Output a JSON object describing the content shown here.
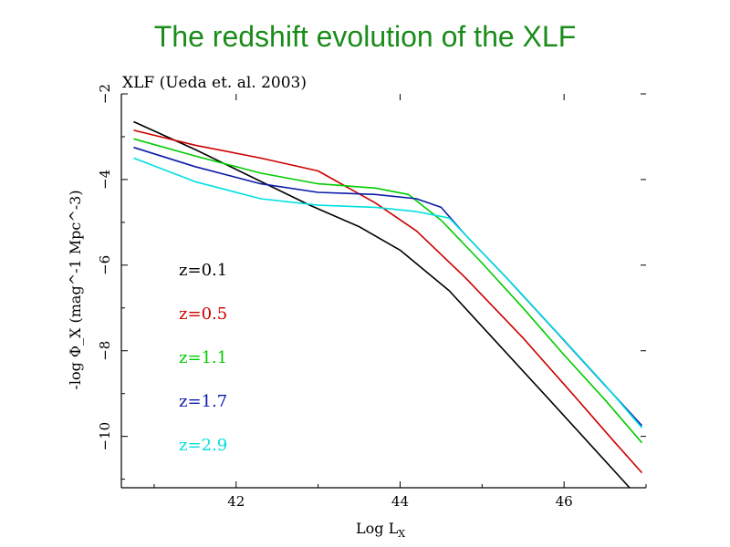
{
  "slide": {
    "title": "The redshift evolution of the XLF"
  },
  "chart_data": {
    "type": "line",
    "title": "XLF (Ueda et. al. 2003)",
    "xlabel": "Log L",
    "xlabel_sub": "X",
    "ylabel": "-log Φ_X (mag^-1 Mpc^-3)",
    "xlim": [
      40.6,
      47.0
    ],
    "ylim": [
      -11.2,
      -2.0
    ],
    "xticks": [
      42,
      44,
      46
    ],
    "yticks": [
      -2,
      -4,
      -6,
      -8,
      -10
    ],
    "xtick_labels": [
      "42",
      "44",
      "46"
    ],
    "ytick_labels": [
      "−2",
      "−4",
      "−6",
      "−8",
      "−10"
    ],
    "grid": false,
    "legend": "left-inline",
    "series": [
      {
        "name": "z=0.1",
        "color": "#000000",
        "x": [
          40.75,
          41.5,
          42.2,
          42.9,
          43.5,
          44.0,
          44.6,
          45.2,
          45.8,
          46.3,
          46.8
        ],
        "y": [
          -2.65,
          -3.3,
          -3.95,
          -4.6,
          -5.1,
          -5.65,
          -6.6,
          -7.85,
          -9.1,
          -10.15,
          -11.2
        ]
      },
      {
        "name": "z=0.5",
        "color": "#cc0000",
        "x": [
          40.75,
          41.5,
          42.3,
          43.0,
          43.7,
          44.2,
          44.8,
          45.5,
          46.1,
          46.6,
          46.95
        ],
        "y": [
          -2.85,
          -3.2,
          -3.5,
          -3.8,
          -4.55,
          -5.2,
          -6.3,
          -7.7,
          -9.0,
          -10.1,
          -10.85
        ]
      },
      {
        "name": "z=1.1",
        "color": "#00cc00",
        "x": [
          40.75,
          41.5,
          42.3,
          43.0,
          43.7,
          44.1,
          44.5,
          45.0,
          45.5,
          46.0,
          46.5,
          46.95
        ],
        "y": [
          -3.05,
          -3.45,
          -3.85,
          -4.1,
          -4.2,
          -4.35,
          -4.95,
          -5.95,
          -7.0,
          -8.1,
          -9.15,
          -10.15
        ]
      },
      {
        "name": "z=1.7",
        "color": "#0a1aa8",
        "x": [
          40.75,
          41.5,
          42.3,
          43.0,
          43.7,
          44.2,
          44.5,
          44.8,
          45.3,
          45.9,
          46.4,
          46.95
        ],
        "y": [
          -3.25,
          -3.7,
          -4.1,
          -4.3,
          -4.35,
          -4.45,
          -4.65,
          -5.3,
          -6.3,
          -7.55,
          -8.6,
          -9.75
        ]
      },
      {
        "name": "z=2.9",
        "color": "#00e0e0",
        "x": [
          40.75,
          41.5,
          42.3,
          43.0,
          43.7,
          44.2,
          44.6,
          44.9,
          45.4,
          46.0,
          46.5,
          46.95
        ],
        "y": [
          -3.5,
          -4.05,
          -4.45,
          -4.6,
          -4.65,
          -4.75,
          -4.9,
          -5.5,
          -6.5,
          -7.75,
          -8.8,
          -9.8
        ]
      }
    ]
  }
}
